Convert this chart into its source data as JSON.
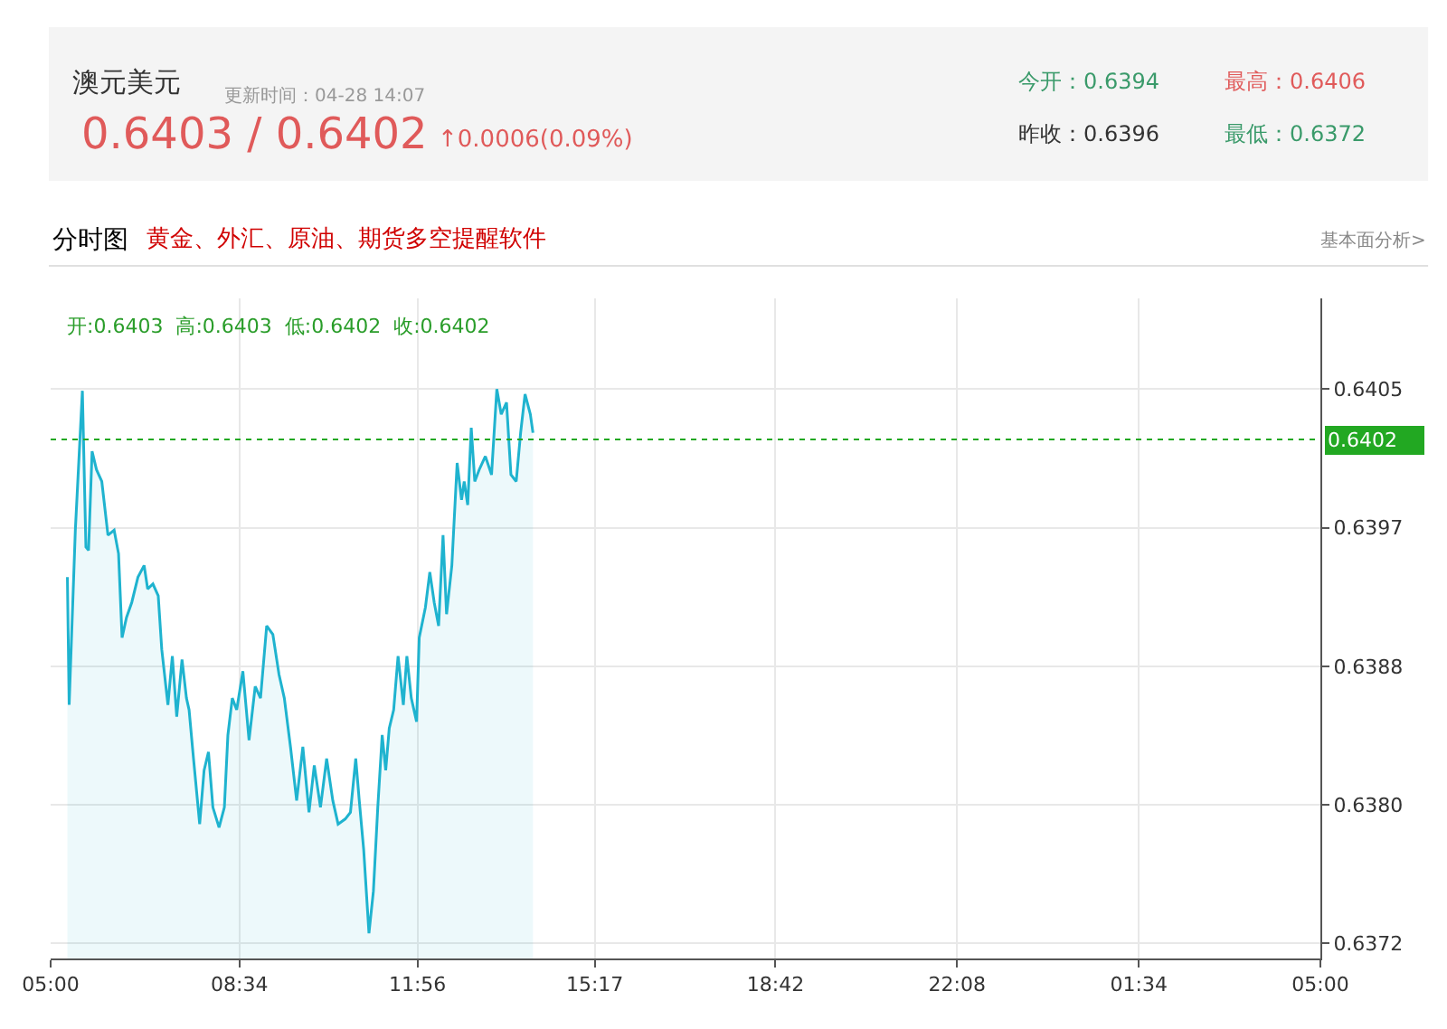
{
  "chart_data": {
    "type": "area",
    "title": "澳元美元",
    "subtitle": "更新时间：04-28 14:07",
    "annotations": [
      "0.6403 / 0.6402",
      "↑0.0006(0.09%)",
      "今开：0.6394",
      "最高：0.6406",
      "昨收：0.6396",
      "最低：0.6372",
      "分时图",
      "黄金、外汇、原油、期货多空提醒软件",
      "基本面分析>",
      "开:0.6403  高:0.6403  低:0.6402  收:0.6402"
    ],
    "x": [
      "--04-28T05:19",
      "--04-28T05:21",
      "--04-28T05:28",
      "--04-28T05:36",
      "--04-28T05:40",
      "--04-28T05:43",
      "--04-28T05:47",
      "--04-28T05:52",
      "--04-28T05:58",
      "--04-28T06:05",
      "--04-28T06:12",
      "--04-28T06:17",
      "--04-28T06:21",
      "--04-28T06:26",
      "--04-28T06:32",
      "--04-28T06:39",
      "--04-28T06:46",
      "--04-28T06:50",
      "--04-28T06:56",
      "--04-28T07:02",
      "--04-28T07:06",
      "--04-28T07:13",
      "--04-28T07:18",
      "--04-28T07:23",
      "--04-28T07:29",
      "--04-28T07:34",
      "--04-28T07:37",
      "--04-28T07:42",
      "--04-28T07:49",
      "--04-28T07:54",
      "--04-28T07:59",
      "--04-28T08:04",
      "--04-28T08:11",
      "--04-28T08:17",
      "--04-28T08:21",
      "--04-28T08:26",
      "--04-28T08:31",
      "--04-28T08:38",
      "--04-28T08:45",
      "--04-28T08:52",
      "--04-28T08:58",
      "--04-28T09:05",
      "--04-28T09:12",
      "--04-28T09:19",
      "--04-28T09:25",
      "--04-28T09:32",
      "--04-28T09:39",
      "--04-28T09:46",
      "--04-28T09:53",
      "--04-28T09:59",
      "--04-28T10:06",
      "--04-28T10:13",
      "--04-28T10:20",
      "--04-28T10:26",
      "--04-28T10:34",
      "--04-28T10:40",
      "--04-28T10:46",
      "--04-28T10:50",
      "--04-28T10:55",
      "--04-28T11:01",
      "--04-28T11:06",
      "--04-28T11:11",
      "--04-28T11:16",
      "--04-28T11:20",
      "--04-28T11:24",
      "--04-28T11:29",
      "--04-28T11:34",
      "--04-28T11:40",
      "--04-28T11:44",
      "--04-28T11:49",
      "--04-28T11:55",
      "--04-28T11:58",
      "--04-28T12:05",
      "--04-28T12:10",
      "--04-28T12:15",
      "--04-28T12:20",
      "--04-28T12:25",
      "--04-28T12:29",
      "--04-28T12:35",
      "--04-28T12:41",
      "--04-28T12:46",
      "--04-28T12:49",
      "--04-28T12:53",
      "--04-28T12:57",
      "--04-28T13:01",
      "--04-28T13:06",
      "--04-28T13:13",
      "--04-28T13:20",
      "--04-28T13:26",
      "--04-28T13:31",
      "--04-28T13:37",
      "--04-28T13:42",
      "--04-28T13:48",
      "--04-28T13:53",
      "--04-28T13:58",
      "--04-28T14:04",
      "--04-28T14:07"
    ],
    "series": [
      {
        "color": "#1fb3cf",
        "values": [
          0.63938,
          0.63862,
          0.63966,
          0.64049,
          0.63956,
          0.63954,
          0.64013,
          0.64002,
          0.63995,
          0.63963,
          0.63966,
          0.63952,
          0.63902,
          0.63914,
          0.63923,
          0.63938,
          0.63945,
          0.63931,
          0.63934,
          0.63927,
          0.63895,
          0.63862,
          0.63891,
          0.63855,
          0.63889,
          0.63866,
          0.63859,
          0.6383,
          0.63791,
          0.63823,
          0.63834,
          0.63801,
          0.63789,
          0.63801,
          0.63844,
          0.63866,
          0.63859,
          0.63882,
          0.63841,
          0.63873,
          0.63866,
          0.63909,
          0.63904,
          0.6388,
          0.63866,
          0.63837,
          0.63805,
          0.63837,
          0.63798,
          0.63826,
          0.63801,
          0.6383,
          0.63805,
          0.63791,
          0.63794,
          0.63798,
          0.6383,
          0.63805,
          0.63776,
          0.63726,
          0.63751,
          0.63801,
          0.63844,
          0.63823,
          0.63848,
          0.63859,
          0.63891,
          0.63862,
          0.63891,
          0.63866,
          0.63852,
          0.63902,
          0.6392,
          0.63941,
          0.63923,
          0.63909,
          0.63963,
          0.63916,
          0.63945,
          0.64006,
          0.63984,
          0.63995,
          0.63981,
          0.64027,
          0.63995,
          0.64002,
          0.6401,
          0.63999,
          0.6405,
          0.64035,
          0.64042,
          0.63999,
          0.63995,
          0.64024,
          0.64047,
          0.64035,
          0.64024
        ]
      }
    ],
    "xlim": [
      "--04-28T05:00",
      "--04-29T05:00"
    ],
    "xticks": [
      {
        "value": "--04-28T05:00",
        "label": "05:00"
      },
      {
        "value": "--04-28T08:34",
        "label": "08:34"
      },
      {
        "value": "--04-28T11:56",
        "label": "11:56"
      },
      {
        "value": "--04-28T15:17",
        "label": "15:17"
      },
      {
        "value": "--04-28T18:42",
        "label": "18:42"
      },
      {
        "value": "--04-28T22:08",
        "label": "22:08"
      },
      {
        "value": "--04-29T01:34",
        "label": "01:34"
      },
      {
        "value": "--04-29T05:00",
        "label": "05:00"
      }
    ],
    "ylim": [
      0.63711,
      0.64104
    ],
    "yticks": [
      {
        "value": 0.6372,
        "label": "0.6372"
      },
      {
        "value": 0.638025,
        "label": "0.6380"
      },
      {
        "value": 0.63885,
        "label": "0.6388"
      },
      {
        "value": 0.639675,
        "label": "0.6397"
      },
      {
        "value": 0.6405,
        "label": "0.6405"
      }
    ],
    "ref_lines": [
      {
        "axis": "y",
        "value": 0.6402,
        "label": "0.6402",
        "color": "#22a822",
        "line_style": "dotted"
      }
    ],
    "grid": true
  }
}
